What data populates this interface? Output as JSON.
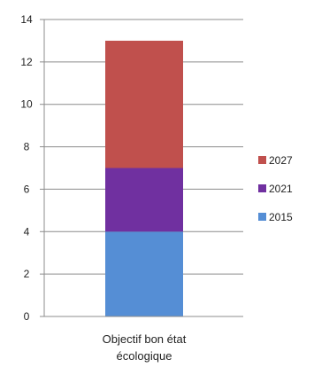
{
  "chart_data": {
    "type": "bar",
    "stacked": true,
    "categories": [
      "Objectif bon état écologique"
    ],
    "category_label_lines": [
      "Objectif bon état",
      "écologique"
    ],
    "series": [
      {
        "name": "2015",
        "values": [
          4
        ],
        "color": "#558ED5"
      },
      {
        "name": "2021",
        "values": [
          3
        ],
        "color": "#7030A0"
      },
      {
        "name": "2027",
        "values": [
          6
        ],
        "color": "#C0504D"
      }
    ],
    "ylim": [
      0,
      14
    ],
    "yticks": [
      0,
      2,
      4,
      6,
      8,
      10,
      12,
      14
    ],
    "grid": true,
    "legend": "right",
    "legend_order": [
      "2027",
      "2021",
      "2015"
    ],
    "title": "",
    "xlabel": "",
    "ylabel": ""
  }
}
